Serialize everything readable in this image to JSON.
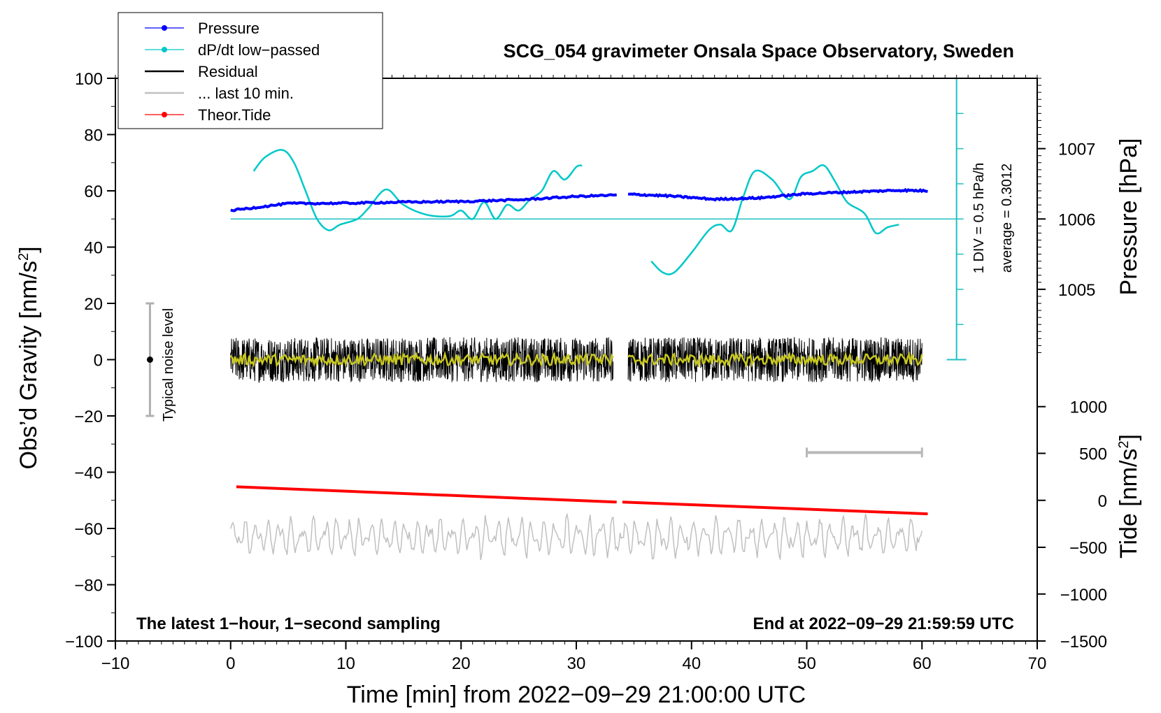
{
  "chart_data": {
    "type": "line",
    "title": "SCG_054 gravimeter Onsala Space Observatory, Sweden",
    "xlabel": "Time [min] from 2022−09−29 21:00:00 UTC",
    "ylabel": "Obs’d Gravity [nm/s²]",
    "ylabel_main": "Obs’d Gravity [nm/s",
    "ylabel_sup": "2",
    "ylabel_end": "]",
    "y2_label": "Pressure [hPa]",
    "y3_label_main": "Tide [nm/s",
    "y3_label_sup": "2",
    "y3_label_end": "]",
    "xlim": [
      -10,
      70
    ],
    "ylim": [
      -100,
      100
    ],
    "x_ticks": [
      -10,
      0,
      10,
      20,
      30,
      40,
      50,
      60,
      70
    ],
    "x_tick_labels": [
      "−10",
      "0",
      "10",
      "20",
      "30",
      "40",
      "50",
      "60",
      "70"
    ],
    "y_ticks": [
      -100,
      -80,
      -60,
      -40,
      -20,
      0,
      20,
      40,
      60,
      80,
      100
    ],
    "y_tick_labels": [
      "−100",
      "−80",
      "−60",
      "−40",
      "−20",
      "0",
      "20",
      "40",
      "60",
      "80",
      "100"
    ],
    "pressure_axis": {
      "ticks": [
        1005,
        1006,
        1007
      ],
      "tick_labels": [
        "1005",
        "1006",
        "1007"
      ],
      "gravity_equiv": [
        25,
        50,
        75
      ]
    },
    "tide_axis": {
      "ticks": [
        1000,
        500,
        0,
        -500,
        -1000,
        -1500
      ],
      "tick_labels": [
        "1000",
        "500",
        "0",
        "−500",
        "−1000",
        "−1500"
      ],
      "gravity_equiv": [
        -16.7,
        -33.3,
        -50,
        -66.7,
        -83.3,
        -100
      ]
    },
    "legend": [
      {
        "label": "Pressure",
        "color": "#0000ff",
        "marker": true
      },
      {
        "label": "dP/dt low−passed",
        "color": "#00c8c8",
        "marker": true
      },
      {
        "label": "Residual",
        "color": "#000000",
        "marker": false
      },
      {
        "label": "... last 10 min.",
        "color": "#c0c0c0",
        "marker": false
      },
      {
        "label": "Theor.Tide",
        "color": "#ff0000",
        "marker": true
      }
    ],
    "pressure_series": {
      "color": "#0000ff",
      "segment1": {
        "x": [
          0,
          5,
          10,
          15,
          20,
          25,
          30,
          33.5
        ],
        "y": [
          53,
          55.5,
          55.6,
          56,
          56.2,
          56.8,
          58,
          58.5
        ]
      },
      "segment2": {
        "x": [
          34.5,
          38,
          42,
          46,
          50,
          54,
          58,
          60.5
        ],
        "y": [
          58.8,
          58.2,
          57,
          57.5,
          59,
          59.6,
          60.2,
          60
        ]
      }
    },
    "dpdt_series": {
      "color": "#00c8c8",
      "baseline": 50,
      "segment1": {
        "x": [
          2,
          3,
          4.5,
          5.5,
          6.5,
          7.5,
          8.5,
          9.5,
          11,
          12,
          13.5,
          15,
          17,
          19,
          20,
          21,
          22,
          23,
          24,
          25,
          26,
          27,
          28,
          29,
          30,
          30.5
        ],
        "y": [
          67,
          72,
          74.5,
          70,
          60,
          50,
          46,
          48,
          50,
          54,
          60.5,
          55,
          51.5,
          51,
          53,
          50,
          56,
          50,
          55,
          53,
          57,
          60,
          67,
          64,
          68.5,
          69
        ]
      },
      "segment2": {
        "x": [
          36.5,
          37.5,
          38.5,
          40,
          41.5,
          42.5,
          43.5,
          44.5,
          45.5,
          47,
          48.5,
          49.5,
          50.5,
          51.5,
          52.5,
          53.5,
          55,
          56,
          57,
          58
        ],
        "y": [
          35,
          31,
          31,
          38,
          46,
          48,
          46,
          58,
          67,
          64,
          57,
          65,
          67,
          69,
          63,
          56,
          52,
          45,
          47,
          48
        ]
      }
    },
    "residual_series": {
      "color": "#000000",
      "center": 0,
      "amplitude": 8,
      "segments": [
        [
          0,
          33.2
        ],
        [
          34.5,
          60
        ]
      ]
    },
    "residual_smooth": {
      "color": "#c8c820",
      "amplitude": 2
    },
    "last10_series": {
      "color": "#c0c0c0",
      "center": -63,
      "amplitude": 7,
      "x_range": [
        0,
        60
      ]
    },
    "tide_series": {
      "color": "#ff0000",
      "segment1": {
        "x": [
          0.5,
          33.5
        ],
        "y": [
          -45.2,
          -50.6
        ]
      },
      "segment2": {
        "x": [
          34,
          60.5
        ],
        "y": [
          -50.6,
          -54.8
        ]
      }
    },
    "noise_bar": {
      "x": -7,
      "y_range": [
        -20,
        20
      ],
      "label": "Typical noise level"
    },
    "dpdt_scale": {
      "label1": "1 DIV = 0.5 hPa/h",
      "label2": "average = 0.3012",
      "x": 63,
      "y_range": [
        0,
        100
      ]
    },
    "ten_min_bar": {
      "x_range": [
        50,
        60
      ],
      "y": -33
    },
    "notes": {
      "left": "The latest 1−hour, 1−second sampling",
      "right": "End at 2022−09−29 21:59:59 UTC"
    }
  }
}
